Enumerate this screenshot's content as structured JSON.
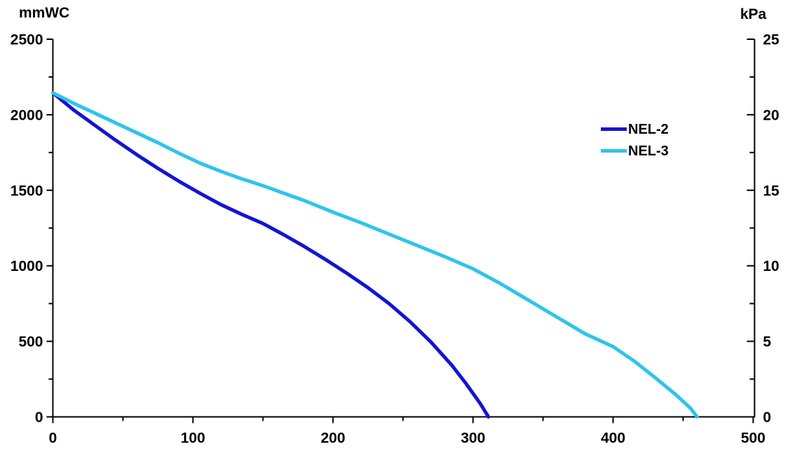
{
  "chart_data": {
    "type": "line",
    "title": "",
    "background": "#ffffff",
    "gridlines": false,
    "x_axis": {
      "range": [
        0,
        500
      ],
      "major_ticks": [
        0,
        100,
        200,
        300,
        400,
        500
      ],
      "minor_step": 50
    },
    "left_axis": {
      "title": "mmWC",
      "range": [
        0,
        2500
      ],
      "major_ticks": [
        0,
        500,
        1000,
        1500,
        2000,
        2500
      ],
      "minor_step": 250
    },
    "right_axis": {
      "title": "kPa",
      "range": [
        0,
        25
      ],
      "major_ticks": [
        0,
        5,
        10,
        15,
        20,
        25
      ],
      "minor_step": 2.5
    },
    "legend": {
      "position": "upper-right"
    },
    "axis_color": "#000000",
    "series": [
      {
        "name": "NEL-2",
        "color": "#1414d2",
        "points": [
          [
            0,
            2145
          ],
          [
            15,
            2030
          ],
          [
            30,
            1930
          ],
          [
            45,
            1830
          ],
          [
            60,
            1735
          ],
          [
            75,
            1645
          ],
          [
            90,
            1560
          ],
          [
            105,
            1480
          ],
          [
            120,
            1405
          ],
          [
            135,
            1340
          ],
          [
            150,
            1280
          ],
          [
            165,
            1205
          ],
          [
            180,
            1125
          ],
          [
            195,
            1040
          ],
          [
            210,
            950
          ],
          [
            225,
            855
          ],
          [
            240,
            750
          ],
          [
            255,
            630
          ],
          [
            270,
            495
          ],
          [
            285,
            340
          ],
          [
            295,
            220
          ],
          [
            305,
            90
          ],
          [
            311,
            0
          ]
        ]
      },
      {
        "name": "NEL-3",
        "color": "#2ec4ec",
        "points": [
          [
            0,
            2145
          ],
          [
            15,
            2075
          ],
          [
            30,
            2010
          ],
          [
            45,
            1945
          ],
          [
            60,
            1880
          ],
          [
            75,
            1815
          ],
          [
            90,
            1745
          ],
          [
            105,
            1680
          ],
          [
            120,
            1625
          ],
          [
            135,
            1575
          ],
          [
            150,
            1530
          ],
          [
            165,
            1480
          ],
          [
            180,
            1430
          ],
          [
            200,
            1355
          ],
          [
            220,
            1285
          ],
          [
            240,
            1210
          ],
          [
            260,
            1135
          ],
          [
            280,
            1060
          ],
          [
            300,
            980
          ],
          [
            320,
            880
          ],
          [
            340,
            770
          ],
          [
            360,
            660
          ],
          [
            380,
            550
          ],
          [
            400,
            465
          ],
          [
            415,
            370
          ],
          [
            430,
            260
          ],
          [
            445,
            145
          ],
          [
            455,
            60
          ],
          [
            460,
            0
          ]
        ]
      }
    ]
  }
}
